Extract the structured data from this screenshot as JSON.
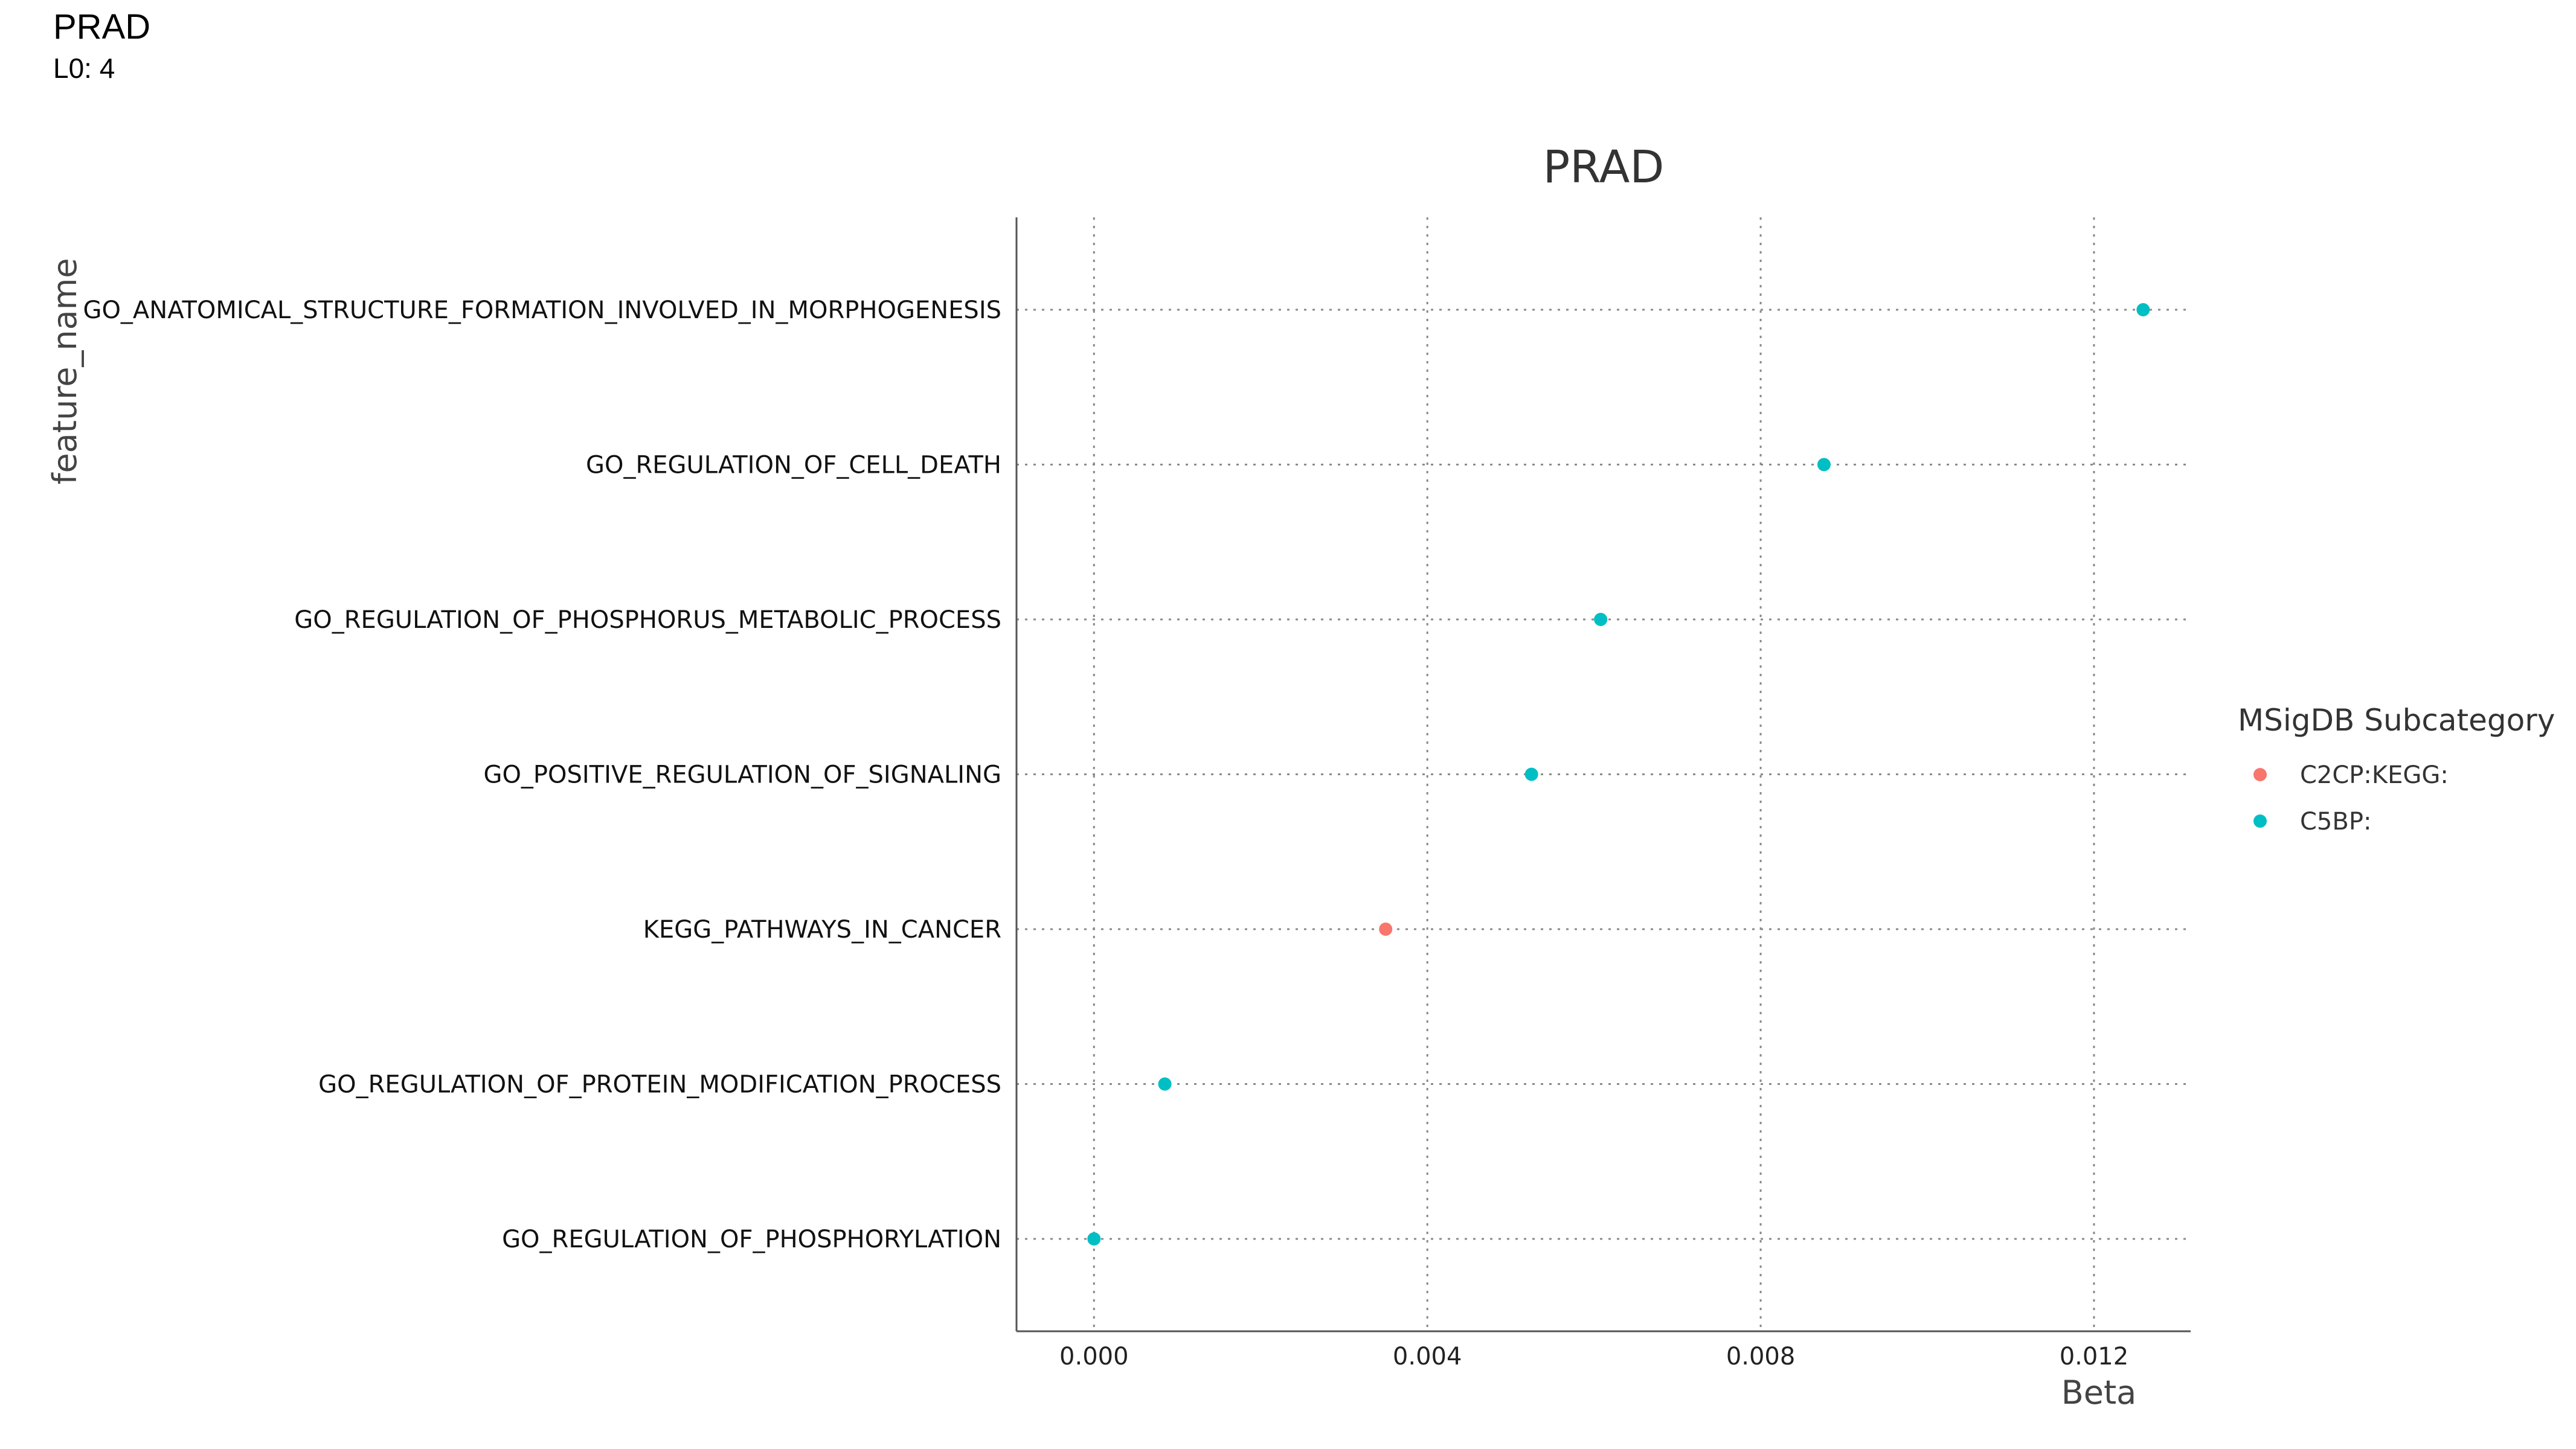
{
  "header": {
    "title": "PRAD",
    "subtitle": "L0: 4"
  },
  "chart_data": {
    "type": "scatter",
    "title": "PRAD",
    "xlabel": "Beta",
    "ylabel": "feature_name",
    "xlim": [
      -0.00093,
      0.01316
    ],
    "x_ticks": [
      "0.000",
      "0.004",
      "0.008",
      "0.012"
    ],
    "x_tick_values": [
      0.0,
      0.004,
      0.008,
      0.012
    ],
    "grid": true,
    "legend": {
      "title": "MSigDB Subcategory",
      "position": "right",
      "entries": [
        {
          "label": "C2CP:KEGG:",
          "color": "#F8766D"
        },
        {
          "label": "C5BP:",
          "color": "#00BFC4"
        }
      ]
    },
    "categories": [
      "GO_ANATOMICAL_STRUCTURE_FORMATION_INVOLVED_IN_MORPHOGENESIS",
      "GO_REGULATION_OF_CELL_DEATH",
      "GO_REGULATION_OF_PHOSPHORUS_METABOLIC_PROCESS",
      "GO_POSITIVE_REGULATION_OF_SIGNALING",
      "KEGG_PATHWAYS_IN_CANCER",
      "GO_REGULATION_OF_PROTEIN_MODIFICATION_PROCESS",
      "GO_REGULATION_OF_PHOSPHORYLATION"
    ],
    "points": [
      {
        "feature": "GO_ANATOMICAL_STRUCTURE_FORMATION_INVOLVED_IN_MORPHOGENESIS",
        "beta": 0.01259,
        "group": "C5BP:"
      },
      {
        "feature": "GO_REGULATION_OF_CELL_DEATH",
        "beta": 0.00876,
        "group": "C5BP:"
      },
      {
        "feature": "GO_REGULATION_OF_PHOSPHORUS_METABOLIC_PROCESS",
        "beta": 0.00608,
        "group": "C5BP:"
      },
      {
        "feature": "GO_POSITIVE_REGULATION_OF_SIGNALING",
        "beta": 0.00525,
        "group": "C5BP:"
      },
      {
        "feature": "KEGG_PATHWAYS_IN_CANCER",
        "beta": 0.0035,
        "group": "C2CP:KEGG:"
      },
      {
        "feature": "GO_REGULATION_OF_PROTEIN_MODIFICATION_PROCESS",
        "beta": 0.00085,
        "group": "C5BP:"
      },
      {
        "feature": "GO_REGULATION_OF_PHOSPHORYLATION",
        "beta": 0.0,
        "group": "C5BP:"
      }
    ]
  }
}
